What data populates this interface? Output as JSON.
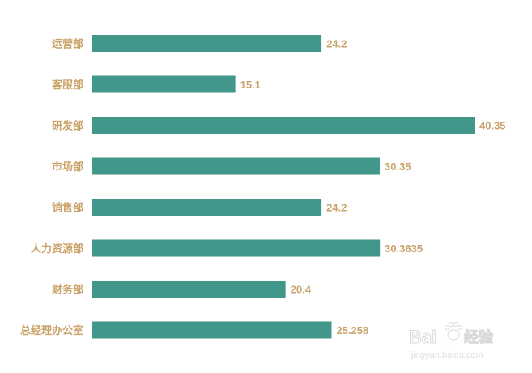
{
  "chart_data": {
    "type": "bar",
    "orientation": "horizontal",
    "categories": [
      "运营部",
      "客服部",
      "研发部",
      "市场部",
      "销售部",
      "人力资源部",
      "财务部",
      "总经理办公室"
    ],
    "values": [
      24.2,
      15.1,
      40.35,
      30.35,
      24.2,
      30.3635,
      20.4,
      25.258
    ],
    "value_labels": [
      "24.2",
      "15.1",
      "40.35",
      "30.35",
      "24.2",
      "30.3635",
      "20.4",
      "25.258"
    ],
    "title": "",
    "xlabel": "",
    "ylabel": "",
    "xlim": [
      0,
      40.35
    ],
    "grid": false,
    "legend": "none",
    "colors": {
      "bar": "#41978a",
      "label": "#c9a36a",
      "axis": "#d6d6d6"
    }
  },
  "watermark": {
    "brand": "Bai",
    "brand_cn": "经验",
    "url": "jingyan.baidu.com"
  }
}
